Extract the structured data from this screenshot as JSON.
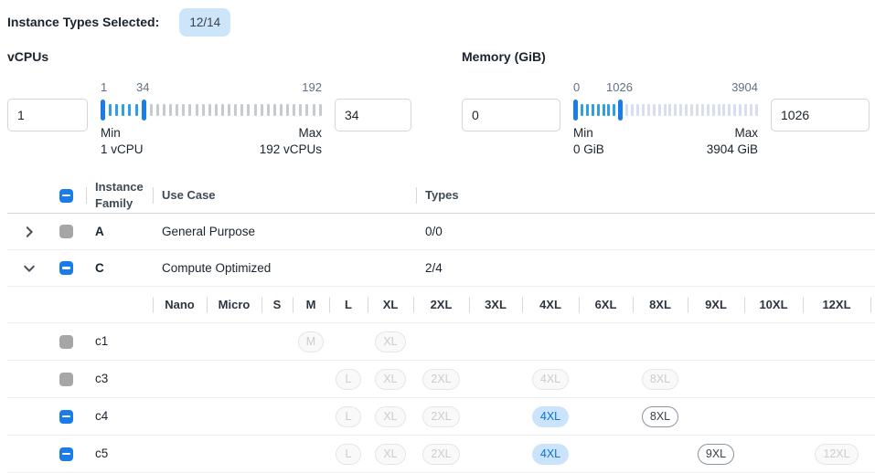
{
  "topbar": {
    "label": "Instance Types Selected:",
    "badge": "12/14"
  },
  "filters": {
    "vcpus": {
      "title": "vCPUs",
      "min_input": "1",
      "max_input": "34",
      "scale": {
        "start": "1",
        "mid": "34",
        "end": "192"
      },
      "min_label": "Min",
      "min_detail": "1 vCPU",
      "max_label": "Max",
      "max_detail": "192 vCPUs",
      "slider": {
        "active_ticks": 5,
        "inactive_ticks": 27,
        "variant": "gray"
      }
    },
    "memory": {
      "title": "Memory (GiB)",
      "min_input": "0",
      "max_input": "1026",
      "scale": {
        "start": "0",
        "mid": "1026",
        "end": "3904"
      },
      "min_label": "Min",
      "min_detail": "0 GiB",
      "max_label": "Max",
      "max_detail": "3904 GiB",
      "slider": {
        "active_ticks": 7,
        "inactive_ticks": 25,
        "variant": "blue-gray"
      }
    }
  },
  "table": {
    "columns": {
      "family": "Instance Family",
      "use_case": "Use Case",
      "types": "Types"
    },
    "families": [
      {
        "name": "A",
        "use_case": "General Purpose",
        "types": "0/0",
        "expanded": false,
        "checkbox": "disabled"
      },
      {
        "name": "C",
        "use_case": "Compute Optimized",
        "types": "2/4",
        "expanded": true,
        "checkbox": "indeterminate"
      }
    ],
    "sizes": [
      "Nano",
      "Micro",
      "S",
      "M",
      "L",
      "XL",
      "2XL",
      "3XL",
      "4XL",
      "6XL",
      "8XL",
      "9XL",
      "10XL",
      "12XL"
    ],
    "instances": [
      {
        "name": "c1",
        "checkbox": "disabled",
        "pills": {
          "M": "disabled",
          "XL": "disabled"
        }
      },
      {
        "name": "c3",
        "checkbox": "disabled",
        "pills": {
          "L": "disabled",
          "XL": "disabled",
          "2XL": "disabled",
          "4XL": "disabled",
          "8XL": "disabled"
        }
      },
      {
        "name": "c4",
        "checkbox": "indeterminate",
        "pills": {
          "L": "disabled",
          "XL": "disabled",
          "2XL": "disabled",
          "4XL": "selected",
          "8XL": "available"
        }
      },
      {
        "name": "c5",
        "checkbox": "indeterminate",
        "pills": {
          "L": "disabled",
          "XL": "disabled",
          "2XL": "disabled",
          "4XL": "selected",
          "9XL": "available",
          "12XL": "disabled"
        }
      }
    ]
  },
  "colors": {
    "accent_blue": "#1a7ce8",
    "tick_active": "#2f9de8",
    "tick_inactive": "#c7cace",
    "tick_inactive_mem": "#d8deee",
    "badge_bg": "#cde5f9",
    "badge_text": "#3a424c",
    "checkbox_disabled": "#a6a6a6",
    "pill_disabled_bg": "#f9f9f9",
    "pill_disabled_border": "#e5e6e8",
    "pill_disabled_text": "#c9cdd1",
    "pill_selected_bg": "#cce4fb",
    "pill_selected_text": "#0c6fe8",
    "pill_available_border": "#8a95a1",
    "pill_available_text": "#39424d",
    "text_primary": "#1a232e",
    "text_secondary": "#5f6f85",
    "border_light": "#eceef0",
    "border_mid": "#d5d8db",
    "input_border": "#d2d6da"
  }
}
